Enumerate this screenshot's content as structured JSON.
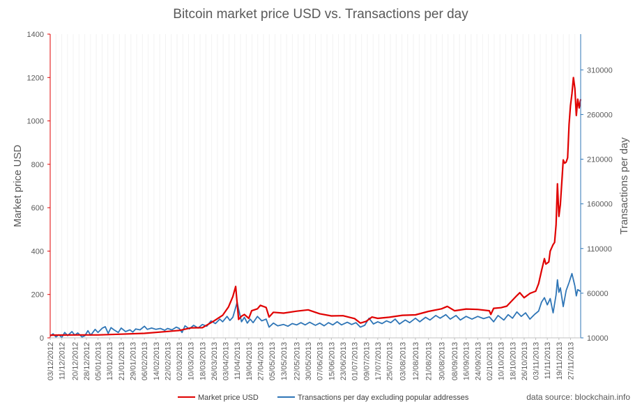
{
  "chart_data": {
    "type": "line",
    "title": "Bitcoin market price USD vs. Transactions per day",
    "ylabel_left": "Market price USD",
    "ylabel_right": "Transactions per day",
    "source": "data source: blockchain.info",
    "legend_position": "bottom",
    "grid": "vertical minor gridlines",
    "ylim_left": [
      0,
      1400
    ],
    "ylim_right": [
      10000,
      350000
    ],
    "left_ticks": [
      "0",
      "200",
      "400",
      "600",
      "800",
      "1000",
      "1200",
      "1400"
    ],
    "left_tick_values": [
      0,
      200,
      400,
      600,
      800,
      1000,
      1200,
      1400
    ],
    "right_ticks": [
      "10000",
      "60000",
      "110000",
      "160000",
      "210000",
      "260000",
      "310000"
    ],
    "right_tick_values": [
      10000,
      60000,
      110000,
      160000,
      210000,
      260000,
      310000
    ],
    "x_start": "2012-12-03",
    "x_end": "2013-12-04",
    "x_tick_labels": [
      "03/12/2012",
      "11/12/2012",
      "20/12/2012",
      "28/12/2012",
      "05/01/2013",
      "13/01/2013",
      "21/01/2013",
      "29/01/2013",
      "06/02/2013",
      "14/02/2013",
      "22/02/2013",
      "02/03/2013",
      "10/03/2013",
      "18/03/2013",
      "26/03/2013",
      "03/04/2013",
      "11/04/2013",
      "19/04/2013",
      "27/04/2013",
      "05/05/2013",
      "13/05/2013",
      "22/05/2013",
      "30/05/2013",
      "07/06/2013",
      "15/06/2013",
      "23/06/2013",
      "01/07/2013",
      "09/07/2013",
      "17/07/2013",
      "25/07/2013",
      "03/08/2013",
      "12/08/2013",
      "21/08/2013",
      "30/08/2013",
      "08/09/2013",
      "16/09/2013",
      "24/09/2013",
      "02/10/2013",
      "10/10/2013",
      "18/10/2013",
      "26/10/2013",
      "03/11/2013",
      "11/11/2013",
      "19/11/2013",
      "27/11/2013"
    ],
    "series": [
      {
        "name": "Market price USD",
        "axis": "left",
        "color": "#e00000",
        "points": [
          [
            "2012-12-03",
            12.5
          ],
          [
            "2012-12-20",
            13.4
          ],
          [
            "2013-01-05",
            13.5
          ],
          [
            "2013-01-21",
            17.0
          ],
          [
            "2013-02-06",
            21.0
          ],
          [
            "2013-02-22",
            29.5
          ],
          [
            "2013-03-02",
            34.0
          ],
          [
            "2013-03-10",
            46.0
          ],
          [
            "2013-03-18",
            47.0
          ],
          [
            "2013-03-26",
            78.0
          ],
          [
            "2013-04-01",
            104.0
          ],
          [
            "2013-04-05",
            142.0
          ],
          [
            "2013-04-08",
            190.0
          ],
          [
            "2013-04-10",
            237.0
          ],
          [
            "2013-04-11",
            160.0
          ],
          [
            "2013-04-12",
            85.0
          ],
          [
            "2013-04-14",
            100.0
          ],
          [
            "2013-04-16",
            108.0
          ],
          [
            "2013-04-19",
            90.0
          ],
          [
            "2013-04-21",
            125.0
          ],
          [
            "2013-04-25",
            134.0
          ],
          [
            "2013-04-27",
            150.0
          ],
          [
            "2013-05-01",
            140.0
          ],
          [
            "2013-05-03",
            96.0
          ],
          [
            "2013-05-06",
            118.0
          ],
          [
            "2013-05-13",
            114.0
          ],
          [
            "2013-05-22",
            123.0
          ],
          [
            "2013-05-30",
            129.0
          ],
          [
            "2013-06-07",
            111.0
          ],
          [
            "2013-06-15",
            101.0
          ],
          [
            "2013-06-23",
            102.0
          ],
          [
            "2013-07-01",
            89.0
          ],
          [
            "2013-07-05",
            68.0
          ],
          [
            "2013-07-09",
            76.0
          ],
          [
            "2013-07-13",
            96.0
          ],
          [
            "2013-07-17",
            90.0
          ],
          [
            "2013-07-25",
            95.0
          ],
          [
            "2013-08-03",
            104.0
          ],
          [
            "2013-08-12",
            106.0
          ],
          [
            "2013-08-21",
            122.0
          ],
          [
            "2013-08-30",
            134.0
          ],
          [
            "2013-09-03",
            145.0
          ],
          [
            "2013-09-08",
            125.0
          ],
          [
            "2013-09-16",
            133.0
          ],
          [
            "2013-09-24",
            131.0
          ],
          [
            "2013-10-02",
            125.0
          ],
          [
            "2013-10-03",
            108.0
          ],
          [
            "2013-10-05",
            136.0
          ],
          [
            "2013-10-10",
            139.0
          ],
          [
            "2013-10-14",
            146.0
          ],
          [
            "2013-10-18",
            174.0
          ],
          [
            "2013-10-21",
            195.0
          ],
          [
            "2013-10-23",
            208.0
          ],
          [
            "2013-10-26",
            185.0
          ],
          [
            "2013-10-30",
            205.0
          ],
          [
            "2013-11-03",
            215.0
          ],
          [
            "2013-11-05",
            250.0
          ],
          [
            "2013-11-07",
            310.0
          ],
          [
            "2013-11-09",
            365.0
          ],
          [
            "2013-11-10",
            340.0
          ],
          [
            "2013-11-12",
            350.0
          ],
          [
            "2013-11-13",
            400.0
          ],
          [
            "2013-11-15",
            430.0
          ],
          [
            "2013-11-16",
            440.0
          ],
          [
            "2013-11-17",
            520.0
          ],
          [
            "2013-11-18",
            710.0
          ],
          [
            "2013-11-19",
            560.0
          ],
          [
            "2013-11-20",
            615.0
          ],
          [
            "2013-11-21",
            720.0
          ],
          [
            "2013-11-22",
            820.0
          ],
          [
            "2013-11-23",
            805.0
          ],
          [
            "2013-11-24",
            810.0
          ],
          [
            "2013-11-25",
            830.0
          ],
          [
            "2013-11-26",
            985.0
          ],
          [
            "2013-11-27",
            1070.0
          ],
          [
            "2013-11-28",
            1125.0
          ],
          [
            "2013-11-29",
            1200.0
          ],
          [
            "2013-11-30",
            1150.0
          ],
          [
            "2013-12-01",
            1025.0
          ],
          [
            "2013-12-02",
            1100.0
          ],
          [
            "2013-12-03",
            1060.0
          ],
          [
            "2013-12-04",
            1100.0
          ]
        ]
      },
      {
        "name": "Transactions per day excluding popular addresses",
        "axis": "right",
        "color": "#2e75b6",
        "points": [
          [
            "2012-12-03",
            12000
          ],
          [
            "2012-12-05",
            14500
          ],
          [
            "2012-12-07",
            11000
          ],
          [
            "2012-12-09",
            13500
          ],
          [
            "2012-12-11",
            10500
          ],
          [
            "2012-12-13",
            16000
          ],
          [
            "2012-12-15",
            12500
          ],
          [
            "2012-12-18",
            17000
          ],
          [
            "2012-12-20",
            13000
          ],
          [
            "2012-12-22",
            15500
          ],
          [
            "2012-12-25",
            11000
          ],
          [
            "2012-12-27",
            12500
          ],
          [
            "2012-12-29",
            18000
          ],
          [
            "2012-12-31",
            13000
          ],
          [
            "2013-01-03",
            19500
          ],
          [
            "2013-01-05",
            16000
          ],
          [
            "2013-01-08",
            21000
          ],
          [
            "2013-01-10",
            22500
          ],
          [
            "2013-01-12",
            15000
          ],
          [
            "2013-01-14",
            21500
          ],
          [
            "2013-01-16",
            19000
          ],
          [
            "2013-01-19",
            16000
          ],
          [
            "2013-01-21",
            21000
          ],
          [
            "2013-01-24",
            17000
          ],
          [
            "2013-01-27",
            19000
          ],
          [
            "2013-01-29",
            16500
          ],
          [
            "2013-01-31",
            20000
          ],
          [
            "2013-02-03",
            19000
          ],
          [
            "2013-02-06",
            23000
          ],
          [
            "2013-02-08",
            19500
          ],
          [
            "2013-02-11",
            21000
          ],
          [
            "2013-02-14",
            19500
          ],
          [
            "2013-02-17",
            20500
          ],
          [
            "2013-02-20",
            18500
          ],
          [
            "2013-02-22",
            20500
          ],
          [
            "2013-02-25",
            19000
          ],
          [
            "2013-02-28",
            22000
          ],
          [
            "2013-03-02",
            20500
          ],
          [
            "2013-03-04",
            16000
          ],
          [
            "2013-03-06",
            23500
          ],
          [
            "2013-03-09",
            20000
          ],
          [
            "2013-03-12",
            24000
          ],
          [
            "2013-03-15",
            21000
          ],
          [
            "2013-03-18",
            25000
          ],
          [
            "2013-03-21",
            23000
          ],
          [
            "2013-03-24",
            29000
          ],
          [
            "2013-03-27",
            26000
          ],
          [
            "2013-03-30",
            31000
          ],
          [
            "2013-04-01",
            28000
          ],
          [
            "2013-04-04",
            34000
          ],
          [
            "2013-04-06",
            29500
          ],
          [
            "2013-04-08",
            33000
          ],
          [
            "2013-04-10",
            44000
          ],
          [
            "2013-04-11",
            50000
          ],
          [
            "2013-04-12",
            42000
          ],
          [
            "2013-04-14",
            28000
          ],
          [
            "2013-04-16",
            33000
          ],
          [
            "2013-04-18",
            26500
          ],
          [
            "2013-04-20",
            31000
          ],
          [
            "2013-04-22",
            27000
          ],
          [
            "2013-04-25",
            34000
          ],
          [
            "2013-04-28",
            29000
          ],
          [
            "2013-05-01",
            31000
          ],
          [
            "2013-05-03",
            22000
          ],
          [
            "2013-05-06",
            26500
          ],
          [
            "2013-05-09",
            23500
          ],
          [
            "2013-05-13",
            25000
          ],
          [
            "2013-05-16",
            23000
          ],
          [
            "2013-05-19",
            26000
          ],
          [
            "2013-05-22",
            24500
          ],
          [
            "2013-05-25",
            27000
          ],
          [
            "2013-05-28",
            24500
          ],
          [
            "2013-05-31",
            27500
          ],
          [
            "2013-06-04",
            24000
          ],
          [
            "2013-06-07",
            26500
          ],
          [
            "2013-06-10",
            23500
          ],
          [
            "2013-06-13",
            27000
          ],
          [
            "2013-06-16",
            24500
          ],
          [
            "2013-06-19",
            28000
          ],
          [
            "2013-06-22",
            24500
          ],
          [
            "2013-06-26",
            27500
          ],
          [
            "2013-06-29",
            25000
          ],
          [
            "2013-07-02",
            27000
          ],
          [
            "2013-07-05",
            22000
          ],
          [
            "2013-07-08",
            24000
          ],
          [
            "2013-07-11",
            32000
          ],
          [
            "2013-07-14",
            25500
          ],
          [
            "2013-07-17",
            28000
          ],
          [
            "2013-07-20",
            26000
          ],
          [
            "2013-07-23",
            29000
          ],
          [
            "2013-07-26",
            27000
          ],
          [
            "2013-07-29",
            31000
          ],
          [
            "2013-08-01",
            25500
          ],
          [
            "2013-08-05",
            30000
          ],
          [
            "2013-08-08",
            27000
          ],
          [
            "2013-08-12",
            32000
          ],
          [
            "2013-08-15",
            28000
          ],
          [
            "2013-08-19",
            33000
          ],
          [
            "2013-08-22",
            30000
          ],
          [
            "2013-08-26",
            35000
          ],
          [
            "2013-08-29",
            32000
          ],
          [
            "2013-09-02",
            36000
          ],
          [
            "2013-09-05",
            31000
          ],
          [
            "2013-09-09",
            35000
          ],
          [
            "2013-09-12",
            30000
          ],
          [
            "2013-09-16",
            34000
          ],
          [
            "2013-09-20",
            31000
          ],
          [
            "2013-09-24",
            34000
          ],
          [
            "2013-09-28",
            31500
          ],
          [
            "2013-10-02",
            33500
          ],
          [
            "2013-10-05",
            28000
          ],
          [
            "2013-10-08",
            35000
          ],
          [
            "2013-10-12",
            30000
          ],
          [
            "2013-10-15",
            36000
          ],
          [
            "2013-10-18",
            32000
          ],
          [
            "2013-10-21",
            39000
          ],
          [
            "2013-10-24",
            34000
          ],
          [
            "2013-10-27",
            38000
          ],
          [
            "2013-10-30",
            31000
          ],
          [
            "2013-11-02",
            36000
          ],
          [
            "2013-11-05",
            40000
          ],
          [
            "2013-11-07",
            50000
          ],
          [
            "2013-11-09",
            55000
          ],
          [
            "2013-11-11",
            47000
          ],
          [
            "2013-11-13",
            54000
          ],
          [
            "2013-11-15",
            38000
          ],
          [
            "2013-11-17",
            58000
          ],
          [
            "2013-11-18",
            75000
          ],
          [
            "2013-11-19",
            61000
          ],
          [
            "2013-11-20",
            66000
          ],
          [
            "2013-11-22",
            45000
          ],
          [
            "2013-11-24",
            63000
          ],
          [
            "2013-11-26",
            72000
          ],
          [
            "2013-11-28",
            82000
          ],
          [
            "2013-11-30",
            68000
          ],
          [
            "2013-12-01",
            57000
          ],
          [
            "2013-12-02",
            64000
          ],
          [
            "2013-12-04",
            62000
          ]
        ]
      }
    ]
  }
}
